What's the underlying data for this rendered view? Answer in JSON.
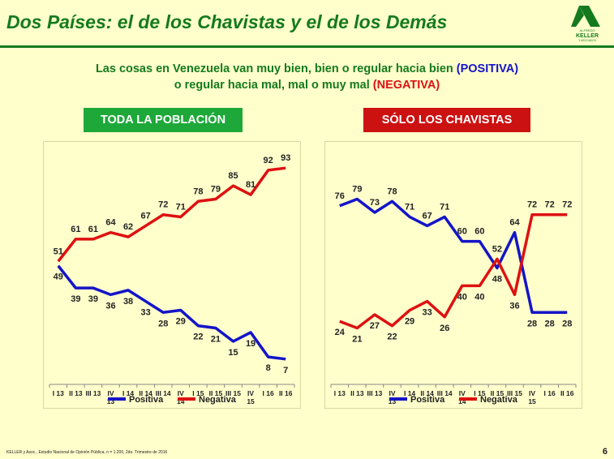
{
  "header": {
    "title": "Dos Países: el de los Chavistas y el de los Demás",
    "logo": {
      "top": "ALFREDO",
      "name": "KELLER",
      "bottom": "Y ASOCIADOS"
    }
  },
  "subtitle": {
    "line1_text": "Las cosas en Venezuela van muy bien, bien o regular hacia bien",
    "line1_tag": "(POSITIVA)",
    "line2_text": "o regular hacia mal, mal o muy mal",
    "line2_tag": "(NEGATIVA)"
  },
  "colors": {
    "green": "#157a1e",
    "positive": "#1414c8",
    "negative": "#dd1111",
    "badge_left": "#1ea83a",
    "badge_right": "#cc1111"
  },
  "footer": {
    "note": "KELLER y Asoc., Estudio Nacional de Opinión Pública, n = 1.200, 2do. Trimestre de 2016",
    "page": "6"
  },
  "chart_data": [
    {
      "type": "line",
      "title": "TODA LA POBLACIÓN",
      "categories": [
        "I 13",
        "II 13",
        "III 13",
        "IV 13",
        "I 14",
        "II 14",
        "III 14",
        "IV 14",
        "I 15",
        "II 15",
        "III 15",
        "IV 15",
        "I 16",
        "II 16"
      ],
      "series": [
        {
          "name": "Positiva",
          "color": "#1414c8",
          "values": [
            49,
            39,
            39,
            36,
            38,
            33,
            28,
            29,
            22,
            21,
            15,
            19,
            8,
            7
          ]
        },
        {
          "name": "Negativa",
          "color": "#dd1111",
          "values": [
            51,
            61,
            61,
            64,
            62,
            67,
            72,
            71,
            78,
            79,
            85,
            81,
            92,
            93
          ]
        }
      ],
      "legend": "bottom",
      "grid": false
    },
    {
      "type": "line",
      "title": "SÓLO LOS CHAVISTAS",
      "categories": [
        "I 13",
        "II 13",
        "III 13",
        "IV 13",
        "I 14",
        "II 14",
        "III 14",
        "IV 14",
        "I 15",
        "II 15",
        "III 15",
        "IV 15",
        "I 16",
        "II 16"
      ],
      "series": [
        {
          "name": "Positiva",
          "color": "#1414c8",
          "values": [
            76,
            79,
            73,
            78,
            71,
            67,
            71,
            60,
            60,
            48,
            64,
            28,
            28,
            28
          ]
        },
        {
          "name": "Negativa",
          "color": "#dd1111",
          "values": [
            24,
            21,
            27,
            22,
            29,
            33,
            26,
            40,
            40,
            52,
            36,
            72,
            72,
            72
          ]
        }
      ],
      "legend": "bottom",
      "grid": false
    }
  ]
}
